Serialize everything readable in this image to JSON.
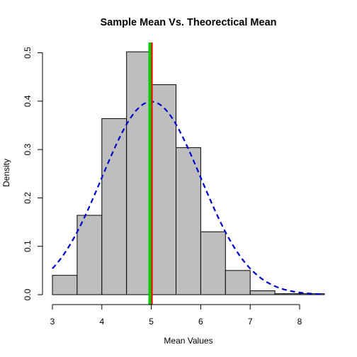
{
  "chart_data": {
    "type": "bar",
    "title": "Sample Mean Vs. Theorectical Mean",
    "xlabel": "Mean Values",
    "ylabel": "Density",
    "xlim": [
      3,
      8.5
    ],
    "ylim": [
      0,
      0.52
    ],
    "x_ticks": [
      3,
      4,
      5,
      6,
      7,
      8
    ],
    "y_ticks": [
      0.0,
      0.1,
      0.2,
      0.3,
      0.4,
      0.5
    ],
    "x_tick_labels": [
      "3",
      "4",
      "5",
      "6",
      "7",
      "8"
    ],
    "y_tick_labels": [
      "0.0",
      "0.1",
      "0.2",
      "0.3",
      "0.4",
      "0.5"
    ],
    "bin_edges": [
      3.0,
      3.5,
      4.0,
      4.5,
      5.0,
      5.5,
      6.0,
      6.5,
      7.0,
      7.5,
      8.0,
      8.5
    ],
    "densities": [
      0.04,
      0.164,
      0.364,
      0.502,
      0.434,
      0.304,
      0.13,
      0.05,
      0.008,
      0.002,
      0.002
    ],
    "bar_fill": "#bebebe",
    "curve": {
      "kind": "normal_density",
      "mean": 5.0,
      "sd": 1.0,
      "x_range": [
        3.0,
        8.5
      ],
      "color": "#0000cd",
      "style": "dashed"
    },
    "vlines": [
      {
        "x": 5.0,
        "color": "#ff0000"
      },
      {
        "x": 4.97,
        "color": "#00cc00"
      }
    ],
    "grid": false,
    "legend": "none"
  }
}
